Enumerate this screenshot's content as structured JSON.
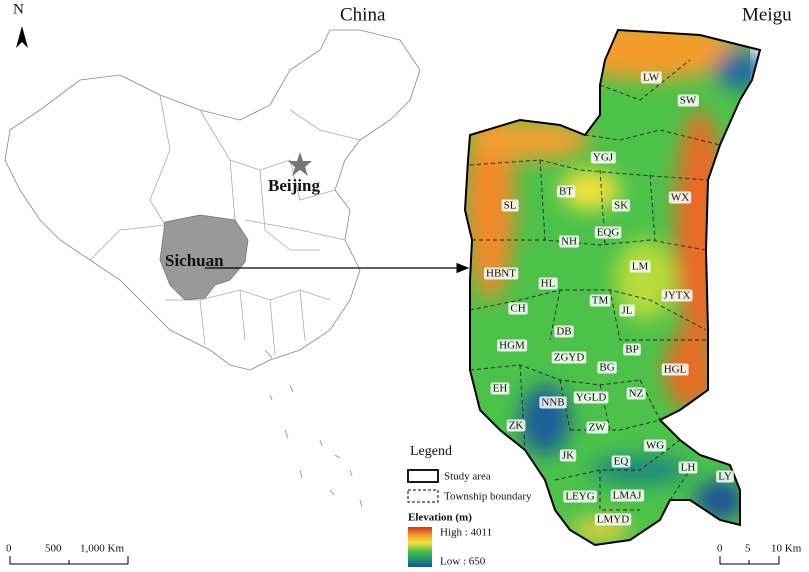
{
  "north_label": "N",
  "china_map": {
    "title": "China",
    "capital": "Beijing",
    "province": "Sichuan",
    "scale_bar": [
      "0",
      "500",
      "1,000 Km"
    ]
  },
  "meigu_map": {
    "title": "Meigu",
    "townships": [
      "LW",
      "SW",
      "YGJ",
      "BT",
      "WX",
      "SL",
      "SK",
      "EQG",
      "NH",
      "LM",
      "HBNT",
      "HL",
      "JYTX",
      "TM",
      "CH",
      "JL",
      "DB",
      "HGM",
      "BP",
      "ZGYD",
      "BG",
      "HGL",
      "EH",
      "NNB",
      "YGLD",
      "NZ",
      "ZK",
      "ZW",
      "WG",
      "JK",
      "EQ",
      "LH",
      "LY",
      "LEYG",
      "LMAJ",
      "LMYD"
    ],
    "scale_bar": [
      "0",
      "5",
      "10 Km"
    ]
  },
  "legend": {
    "title": "Legend",
    "items": [
      "Study area",
      "Township boundary"
    ],
    "elevation": {
      "title": "Elevation (m)",
      "high": "High : 4011",
      "low": "Low : 650"
    }
  }
}
